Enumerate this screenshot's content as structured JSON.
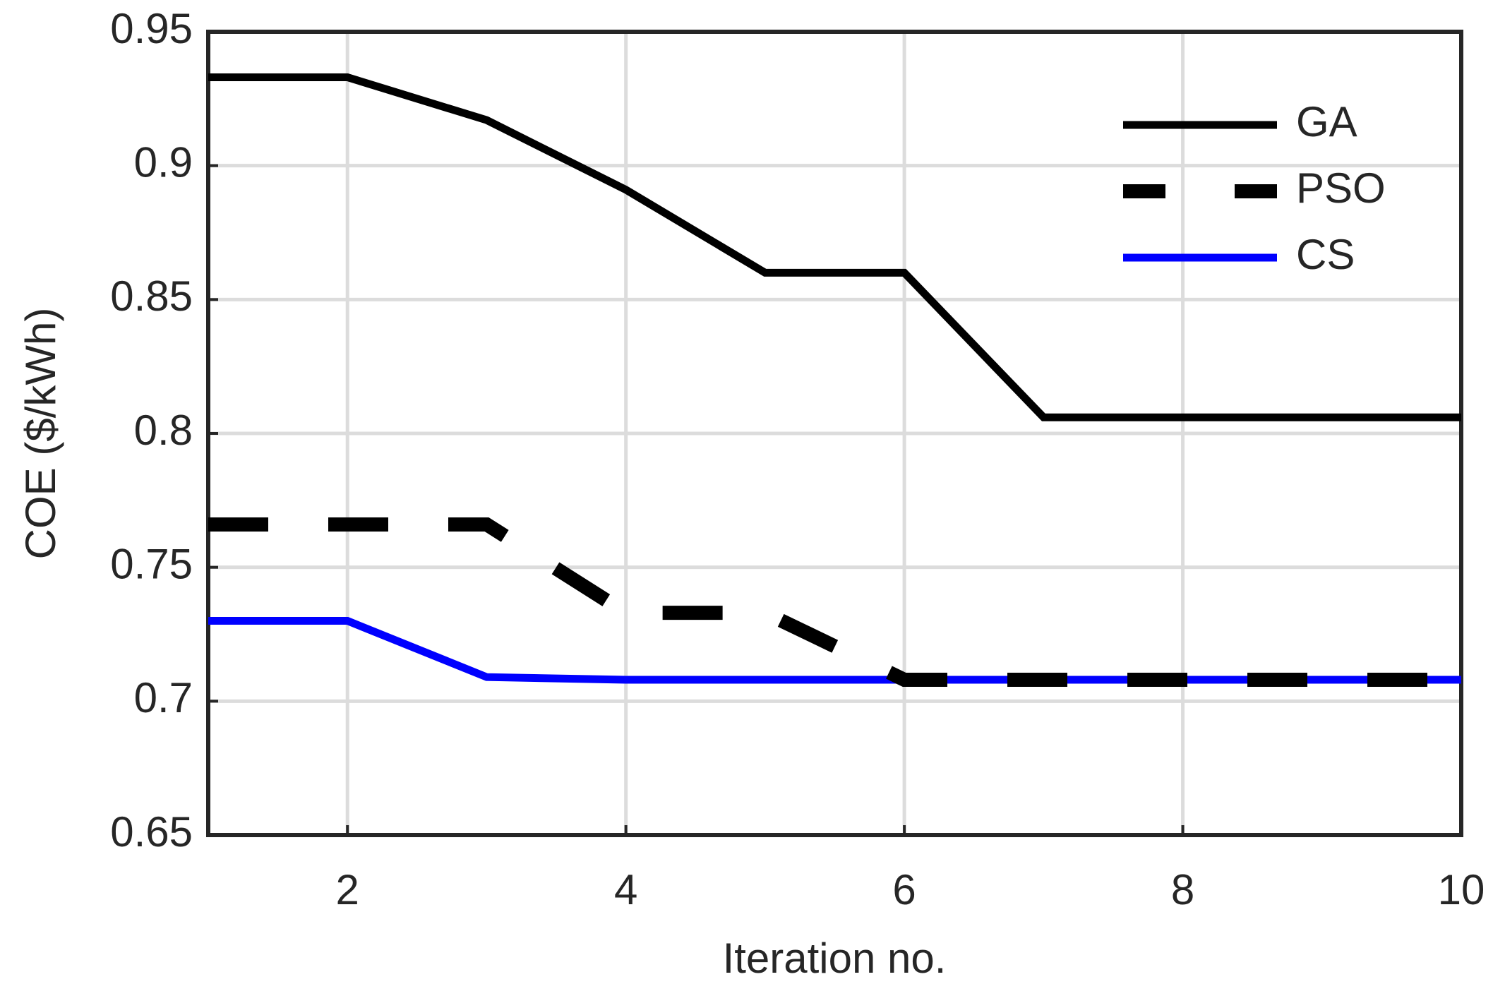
{
  "chart_data": {
    "type": "line",
    "xlabel": "Iteration no.",
    "ylabel": "COE ($/kWh)",
    "x": [
      1,
      2,
      3,
      4,
      5,
      6,
      7,
      8,
      9,
      10
    ],
    "series": [
      {
        "name": "GA",
        "color": "#000000",
        "line_style": "solid",
        "values": [
          0.933,
          0.933,
          0.917,
          0.891,
          0.86,
          0.86,
          0.806,
          0.806,
          0.806,
          0.806
        ]
      },
      {
        "name": "PSO",
        "color": "#000000",
        "line_style": "dashed",
        "values": [
          0.766,
          0.766,
          0.766,
          0.733,
          0.733,
          0.708,
          0.708,
          0.708,
          0.708,
          0.708
        ]
      },
      {
        "name": "CS",
        "color": "#0000ff",
        "line_style": "solid",
        "values": [
          0.73,
          0.73,
          0.709,
          0.708,
          0.708,
          0.708,
          0.708,
          0.708,
          0.708,
          0.708
        ]
      }
    ],
    "xlim": [
      1,
      10
    ],
    "xticks": [
      2,
      4,
      6,
      8,
      10
    ],
    "ylim": [
      0.65,
      0.95
    ],
    "yticks": [
      0.65,
      0.7,
      0.75,
      0.8,
      0.85,
      0.9,
      0.95
    ],
    "grid": true,
    "legend": "upper right"
  }
}
